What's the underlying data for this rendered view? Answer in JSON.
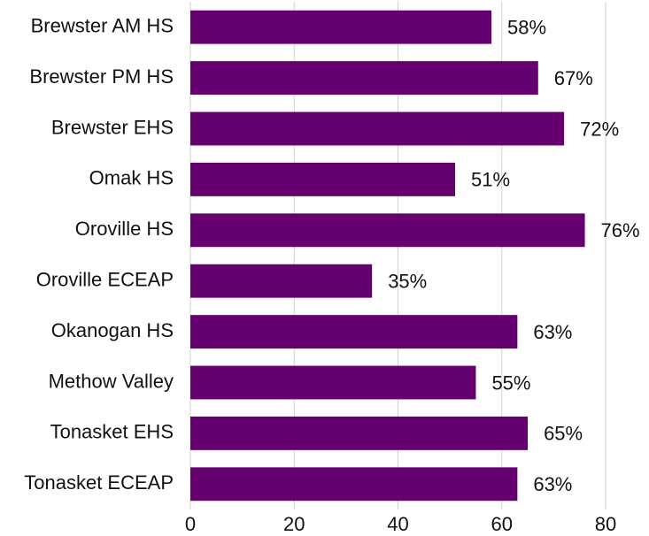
{
  "chart_data": {
    "type": "barh",
    "categories": [
      "Brewster AM HS",
      "Brewster PM HS",
      "Brewster EHS",
      "Omak HS",
      "Oroville HS",
      "Oroville ECEAP",
      "Okanogan HS",
      "Methow Valley",
      "Tonasket EHS",
      "Tonasket ECEAP"
    ],
    "values": [
      58,
      67,
      72,
      51,
      76,
      35,
      63,
      55,
      65,
      63
    ],
    "value_labels": [
      "58%",
      "67%",
      "72%",
      "51%",
      "76%",
      "35%",
      "63%",
      "55%",
      "65%",
      "63%"
    ],
    "color": "#660070",
    "xlim": [
      0,
      80
    ],
    "xticks": [
      0,
      20,
      40,
      60,
      80
    ],
    "grid": true
  }
}
